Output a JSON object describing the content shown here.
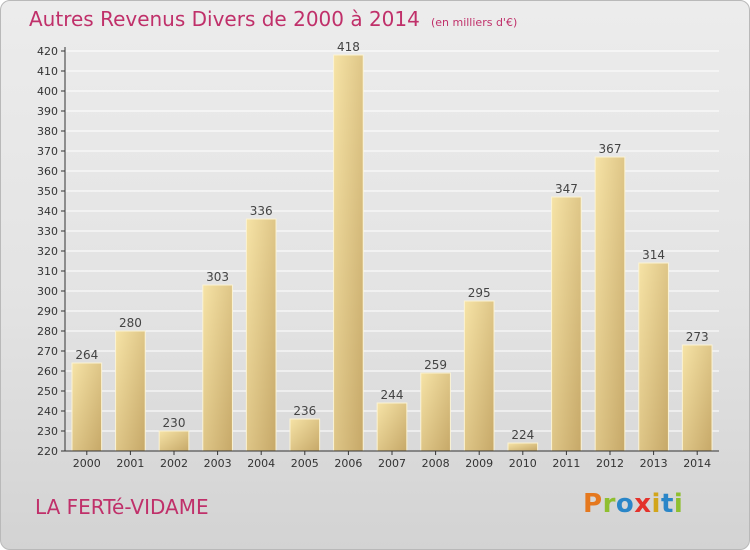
{
  "chart_data": {
    "type": "bar",
    "title": "Autres Revenus Divers de 2000 à 2014",
    "subtitle": "(en milliers d'€)",
    "categories": [
      "2000",
      "2001",
      "2002",
      "2003",
      "2004",
      "2005",
      "2006",
      "2007",
      "2008",
      "2009",
      "2010",
      "2011",
      "2012",
      "2013",
      "2014"
    ],
    "values": [
      264,
      280,
      230,
      303,
      336,
      236,
      418,
      244,
      259,
      295,
      224,
      347,
      367,
      314,
      273
    ],
    "ylim": [
      220,
      420
    ],
    "ytick_step": 10,
    "grid": true,
    "legend": "none",
    "bar_color_light": "#f6e3a6",
    "bar_color_dark": "#c6a868",
    "label_color": "#444444"
  },
  "footer": {
    "commune": "LA FERTé-VIDAME"
  },
  "logo": {
    "letters": [
      "P",
      "r",
      "o",
      "x",
      "i",
      "t",
      "i"
    ],
    "colors": [
      "#e5781e",
      "#8fbf2f",
      "#2a86c8",
      "#e4322b",
      "#d2a51a",
      "#2a86c8",
      "#8fbf2f"
    ]
  },
  "colors": {
    "accent": "#c0306a",
    "axis": "#333333"
  }
}
